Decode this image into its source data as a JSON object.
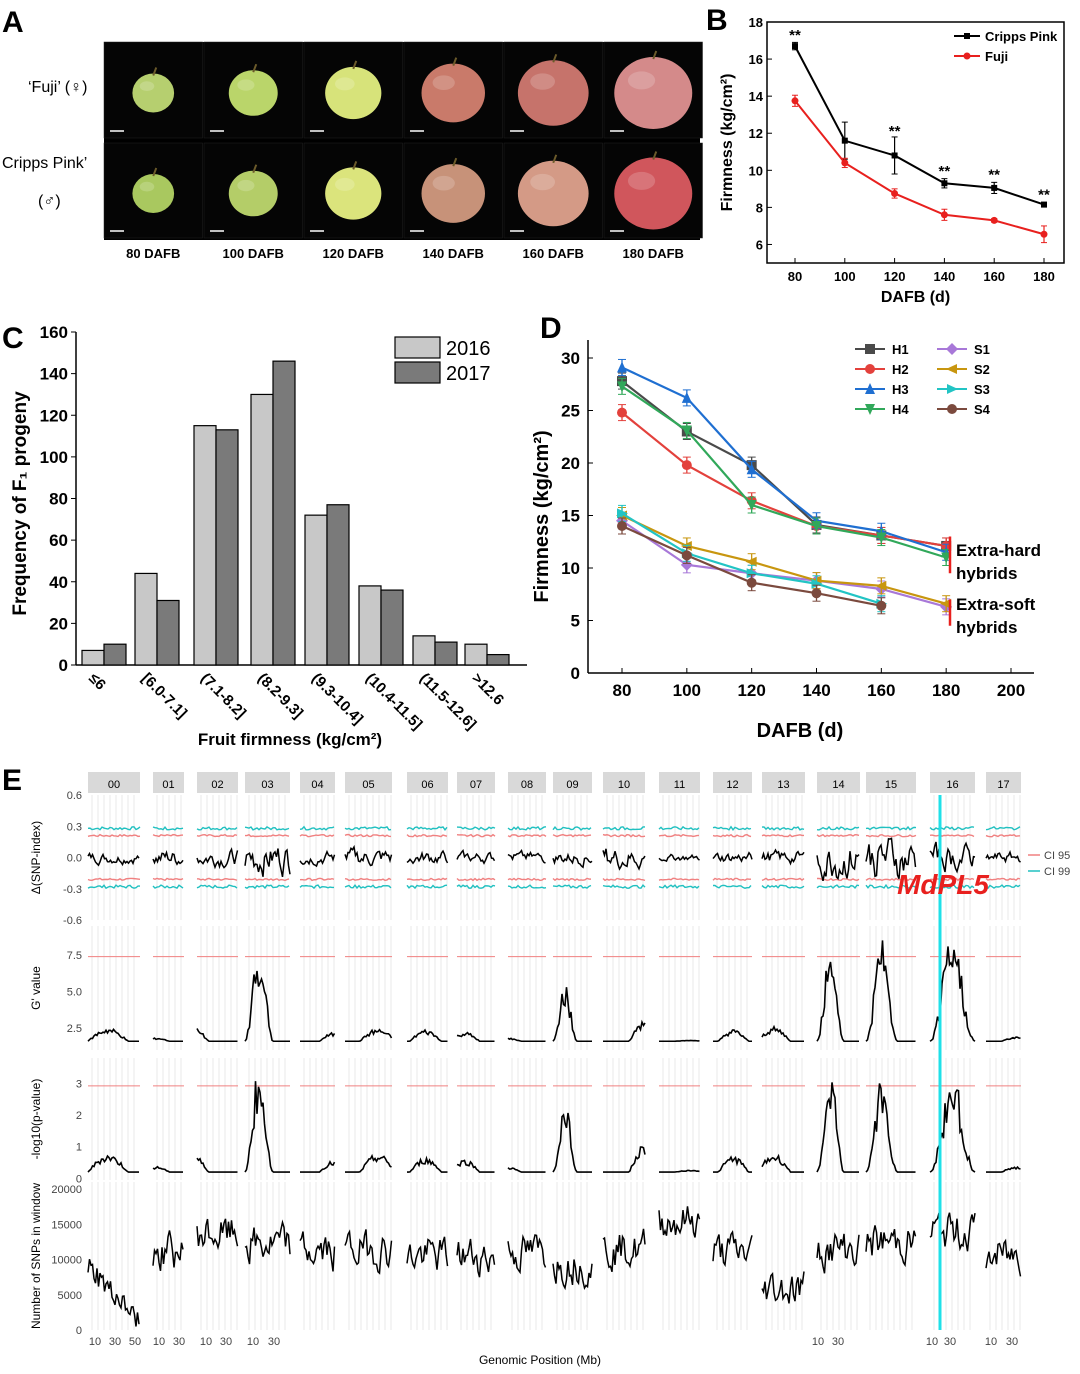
{
  "panel_letters": {
    "A": "A",
    "B": "B",
    "C": "C",
    "D": "D",
    "E": "E"
  },
  "panelA": {
    "row_labels": [
      "‘Fuji’ (♀)",
      "Cripps Pink’",
      "(♂)"
    ],
    "time_labels": [
      "80 DAFB",
      "100 DAFB",
      "120 DAFB",
      "140 DAFB",
      "160 DAFB",
      "180 DAFB"
    ],
    "apple_colors": {
      "fuji": [
        "#b6cf6f",
        "#bad56a",
        "#d7e37a",
        "#c97a6a",
        "#c6736b",
        "#d48a8a"
      ],
      "cripps": [
        "#a9c85f",
        "#b4cd68",
        "#dbe47c",
        "#c79279",
        "#d49a86",
        "#d0565c"
      ]
    }
  },
  "chart_data": [
    {
      "id": "B",
      "type": "line",
      "xlabel": "DAFB (d)",
      "ylabel": "Firmness (kg/cm²)",
      "x": [
        80,
        100,
        120,
        140,
        160,
        180
      ],
      "xticks": [
        "80",
        "100",
        "120",
        "140",
        "160",
        "180"
      ],
      "yticks": [
        "6",
        "8",
        "10",
        "12",
        "14",
        "16",
        "18"
      ],
      "ylim": [
        5,
        18
      ],
      "series": [
        {
          "name": "Cripps Pink",
          "color": "#000000",
          "values": [
            16.7,
            11.6,
            10.8,
            9.3,
            9.05,
            8.15
          ],
          "err": [
            0.2,
            1.0,
            1.0,
            0.25,
            0.3,
            0.12
          ]
        },
        {
          "name": "Fuji",
          "color": "#e8201e",
          "values": [
            13.75,
            10.4,
            8.75,
            7.6,
            7.3,
            6.55
          ],
          "err": [
            0.3,
            0.25,
            0.25,
            0.3,
            0.1,
            0.45
          ]
        }
      ],
      "annotations": [
        "**",
        "**",
        "**",
        "**",
        "**"
      ],
      "annotation_x": [
        80,
        120,
        140,
        160,
        180
      ],
      "legend_position": "top-right"
    },
    {
      "id": "C",
      "type": "bar",
      "xlabel": "Fruit firmness (kg/cm²)",
      "ylabel": "Frequency of F₁ progeny",
      "categories": [
        "≤6",
        "[6.0-7.1]",
        "(7.1-8.2]",
        "(8.2-9.3]",
        "(9.3-10.4]",
        "(10.4-11.5]",
        "(11.5-12.6]",
        ">12.6"
      ],
      "yticks": [
        "0",
        "20",
        "40",
        "60",
        "80",
        "100",
        "120",
        "140",
        "160"
      ],
      "ylim": [
        0,
        160
      ],
      "series": [
        {
          "name": "2016",
          "color": "#c8c8c8",
          "values": [
            7,
            44,
            115,
            130,
            72,
            38,
            14,
            10
          ]
        },
        {
          "name": "2017",
          "color": "#7a7a7a",
          "values": [
            10,
            31,
            113,
            146,
            77,
            36,
            11,
            5
          ]
        }
      ],
      "legend_position": "top-right"
    },
    {
      "id": "D",
      "type": "line",
      "xlabel": "DAFB (d)",
      "ylabel": "Firmness (kg/cm²)",
      "x": [
        80,
        100,
        120,
        140,
        160,
        180
      ],
      "xticks": [
        "80",
        "100",
        "120",
        "140",
        "160",
        "180",
        "200"
      ],
      "yticks": [
        "0",
        "5",
        "10",
        "15",
        "20",
        "25",
        "30"
      ],
      "xlim": [
        65,
        200
      ],
      "ylim": [
        0,
        32
      ],
      "series": [
        {
          "name": "H1",
          "color": "#4a4a4a",
          "marker": "square",
          "values": [
            27.8,
            23.0,
            19.8,
            14.1,
            13.1,
            12.1
          ]
        },
        {
          "name": "H2",
          "color": "#e3413c",
          "marker": "circle",
          "values": [
            24.8,
            19.8,
            16.4,
            14.0,
            13.1,
            12.1
          ]
        },
        {
          "name": "H3",
          "color": "#1f6fd1",
          "marker": "triangle",
          "values": [
            29.1,
            26.2,
            19.4,
            14.5,
            13.5,
            11.5
          ]
        },
        {
          "name": "H4",
          "color": "#31a85a",
          "marker": "triangle-down",
          "values": [
            27.3,
            23.1,
            16.0,
            14.0,
            12.9,
            11.0
          ]
        },
        {
          "name": "S1",
          "color": "#a878d8",
          "marker": "diamond",
          "values": [
            14.5,
            10.3,
            9.5,
            8.8,
            8.0,
            6.3
          ]
        },
        {
          "name": "S2",
          "color": "#c8960f",
          "marker": "triangle-left",
          "values": [
            15.0,
            12.1,
            10.6,
            8.8,
            8.3,
            6.6
          ]
        },
        {
          "name": "S3",
          "color": "#22c4c4",
          "marker": "triangle-right",
          "values": [
            15.2,
            11.4,
            9.5,
            8.5,
            6.6,
            null
          ]
        },
        {
          "name": "S4",
          "color": "#7b4a3e",
          "marker": "circle",
          "values": [
            14.0,
            11.2,
            8.6,
            7.6,
            6.4,
            null
          ]
        }
      ],
      "group_labels": [
        "Extra-hard",
        "hybrids",
        "Extra-soft",
        "hybrids"
      ],
      "legend_position": "top-right"
    },
    {
      "id": "E",
      "type": "line",
      "xlabel": "Genomic Position (Mb)",
      "chromosomes": [
        "00",
        "01",
        "02",
        "03",
        "04",
        "05",
        "06",
        "07",
        "08",
        "09",
        "10",
        "11",
        "12",
        "13",
        "14",
        "15",
        "16",
        "17"
      ],
      "rows": [
        {
          "ylabel": "Δ(SNP-index)",
          "yticks": [
            "0.6",
            "0.3",
            "0.0",
            "-0.3",
            "-0.6"
          ],
          "ylim": [
            -0.6,
            0.6
          ]
        },
        {
          "ylabel": "G' value",
          "yticks": [
            "7.5",
            "5.0",
            "2.5"
          ],
          "ylim": [
            1.0,
            9.5
          ],
          "threshold": 7.4
        },
        {
          "ylabel": "-log10(p-value)",
          "yticks": [
            "3",
            "2",
            "1",
            "0"
          ],
          "ylim": [
            -0.05,
            3.8
          ],
          "threshold": 2.92
        },
        {
          "ylabel": "Number of SNPs in window",
          "yticks": [
            "20000",
            "15000",
            "10000",
            "5000",
            "0"
          ],
          "ylim": [
            0,
            21000
          ]
        }
      ],
      "xticks": [
        "10",
        "30",
        "50",
        "10",
        "30",
        "10",
        "30",
        "10",
        "30",
        "10",
        "30"
      ],
      "legend": [
        {
          "name": "CI 95",
          "color": "#f08080"
        },
        {
          "name": "CI 99",
          "color": "#20c0c0"
        }
      ],
      "gene_label": "MdPL5",
      "highlight_chromosome": "16"
    }
  ]
}
